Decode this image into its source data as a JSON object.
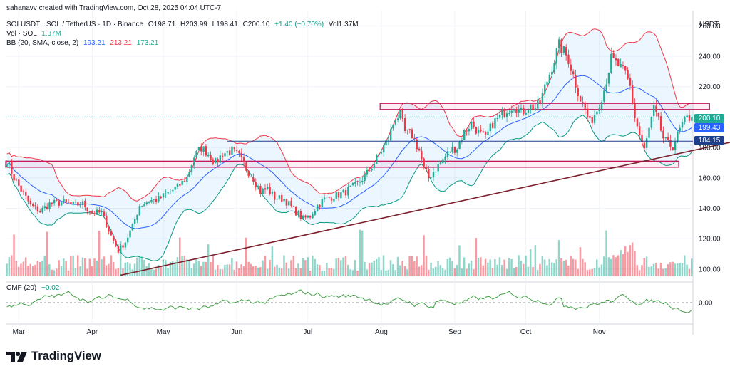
{
  "header": {
    "credit": "sahanavv created with TradingView.com, Oct 28, 2025 04:04 UTC-7",
    "symbol": "SOLUSDT · SOL / TetherUS · 1D · Binance",
    "open": "O198.71",
    "high": "H203.99",
    "low": "L198.41",
    "close": "C200.10",
    "change": "+1.40 (+0.70%)",
    "volume": "Vol1.37M",
    "vol_label": "Vol · SOL",
    "vol_value": "1.37M",
    "bb_label": "BB (20, SMA, close, 2)",
    "bb_basis": "193.21",
    "bb_upper": "213.21",
    "bb_lower": "173.21",
    "cmf_label": "CMF (20)",
    "cmf_value": "−0.02"
  },
  "price_labels": {
    "currency": "USDT",
    "current": "200.10",
    "prev": "199.43",
    "level": "184.15"
  },
  "brand": {
    "name": "TradingView"
  },
  "colors": {
    "up": "#22ab94",
    "down": "#f23645",
    "bb_upper": "#f23645",
    "bb_lower": "#089981",
    "bb_basis": "#2962ff",
    "zone": "#c2185b",
    "trendline": "#7b1f2b",
    "level": "#1e3f8a"
  },
  "chart_data": {
    "type": "candlestick",
    "xlabels": [
      "Mar",
      "Apr",
      "May",
      "Jun",
      "Jul",
      "Aug",
      "Sep",
      "Oct",
      "Nov"
    ],
    "yticks": [
      100,
      120,
      140,
      160,
      180,
      200,
      220,
      240,
      260
    ],
    "ylim": [
      92,
      270
    ],
    "cmf_ticks": [
      "0.00"
    ],
    "start_date": "2025-02-24",
    "end_date": "2025-10-28",
    "price_anchors": [
      [
        0,
        172
      ],
      [
        3,
        160
      ],
      [
        6,
        152
      ],
      [
        10,
        142
      ],
      [
        14,
        138
      ],
      [
        18,
        143
      ],
      [
        24,
        144
      ],
      [
        28,
        142
      ],
      [
        32,
        143
      ],
      [
        36,
        137
      ],
      [
        40,
        137
      ],
      [
        44,
        122
      ],
      [
        47,
        112
      ],
      [
        50,
        118
      ],
      [
        53,
        128
      ],
      [
        56,
        142
      ],
      [
        60,
        145
      ],
      [
        64,
        146
      ],
      [
        68,
        150
      ],
      [
        72,
        154
      ],
      [
        76,
        160
      ],
      [
        79,
        174
      ],
      [
        82,
        180
      ],
      [
        85,
        176
      ],
      [
        88,
        170
      ],
      [
        91,
        176
      ],
      [
        95,
        178
      ],
      [
        98,
        174
      ],
      [
        101,
        166
      ],
      [
        104,
        160
      ],
      [
        107,
        151
      ],
      [
        110,
        153
      ],
      [
        113,
        147
      ],
      [
        117,
        146
      ],
      [
        120,
        141
      ],
      [
        123,
        136
      ],
      [
        125,
        133
      ],
      [
        128,
        135
      ],
      [
        131,
        142
      ],
      [
        134,
        146
      ],
      [
        138,
        148
      ],
      [
        142,
        150
      ],
      [
        145,
        153
      ],
      [
        148,
        156
      ],
      [
        152,
        163
      ],
      [
        155,
        170
      ],
      [
        158,
        178
      ],
      [
        161,
        186
      ],
      [
        164,
        200
      ],
      [
        166,
        201
      ],
      [
        168,
        190
      ],
      [
        171,
        188
      ],
      [
        174,
        178
      ],
      [
        176,
        166
      ],
      [
        178,
        160
      ],
      [
        181,
        166
      ],
      [
        184,
        172
      ],
      [
        187,
        178
      ],
      [
        190,
        180
      ],
      [
        193,
        190
      ],
      [
        196,
        196
      ],
      [
        199,
        190
      ],
      [
        202,
        186
      ],
      [
        205,
        196
      ],
      [
        208,
        200
      ],
      [
        211,
        205
      ],
      [
        214,
        208
      ],
      [
        217,
        203
      ],
      [
        220,
        207
      ],
      [
        223,
        206
      ],
      [
        225,
        210
      ],
      [
        228,
        224
      ],
      [
        231,
        238
      ],
      [
        233,
        247
      ],
      [
        235,
        243
      ],
      [
        237,
        238
      ],
      [
        240,
        222
      ],
      [
        242,
        212
      ],
      [
        244,
        205
      ],
      [
        246,
        196
      ],
      [
        249,
        205
      ],
      [
        252,
        218
      ],
      [
        255,
        238
      ],
      [
        258,
        234
      ],
      [
        261,
        228
      ],
      [
        263,
        220
      ],
      [
        265,
        200
      ],
      [
        267,
        188
      ],
      [
        269,
        178
      ],
      [
        271,
        192
      ],
      [
        273,
        205
      ],
      [
        275,
        197
      ],
      [
        277,
        186
      ],
      [
        279,
        182
      ],
      [
        281,
        181
      ],
      [
        283,
        188
      ],
      [
        285,
        195
      ],
      [
        287,
        199
      ],
      [
        289,
        200.1
      ]
    ],
    "horizontal_levels": [
      {
        "price": 184.15,
        "label": "184.15"
      },
      {
        "price": 200.1,
        "label": "200.10"
      }
    ],
    "zones": [
      {
        "from_day": 0,
        "to_day": 284,
        "low": 167,
        "high": 171
      },
      {
        "from_day": 158,
        "to_day": 297,
        "low": 205,
        "high": 209
      }
    ],
    "trendline": {
      "from": [
        48,
        96
      ],
      "to": [
        307,
        184
      ]
    }
  }
}
